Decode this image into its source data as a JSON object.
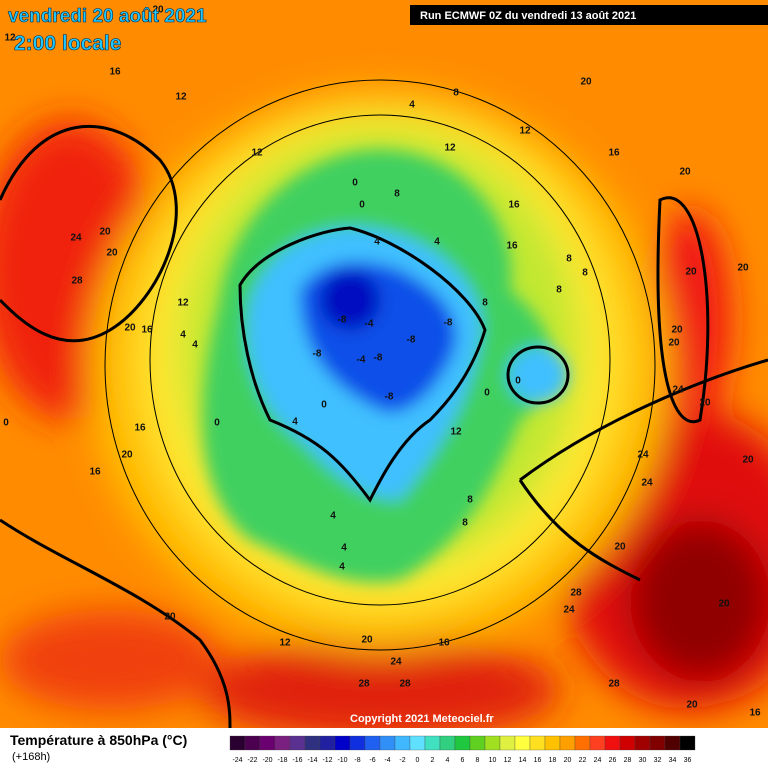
{
  "header": {
    "date": "vendredi 20 août 2021",
    "time": "2:00 locale",
    "run": "Run ECMWF 0Z du vendredi 13 août 2021"
  },
  "map": {
    "copyright": "Copyright 2021 Meteociel.fr",
    "labels": [
      16,
      12,
      4,
      8,
      12,
      16,
      20,
      20,
      12,
      12,
      0,
      8,
      0,
      16,
      16,
      4,
      4,
      24,
      20,
      20,
      28,
      8,
      8,
      8,
      8,
      20,
      20,
      12,
      20,
      16,
      4,
      4,
      -8,
      -4,
      -8,
      -8,
      -8,
      -4,
      -8,
      0,
      0,
      0,
      -8,
      20,
      20,
      24,
      20,
      0,
      4,
      12,
      16,
      20,
      16,
      24,
      20,
      24,
      8,
      4,
      8,
      4,
      4,
      20,
      28,
      24,
      20,
      20,
      12,
      20,
      16,
      24,
      28,
      28,
      28,
      20,
      16,
      0,
      20,
      12
    ]
  },
  "legend": {
    "title": "Température à 850hPa (°C)",
    "subtitle": "(+168h)",
    "ticks": [
      -24,
      -22,
      -20,
      -18,
      -16,
      -14,
      -12,
      -10,
      -8,
      -6,
      -4,
      -2,
      0,
      2,
      4,
      6,
      8,
      10,
      12,
      14,
      16,
      18,
      20,
      22,
      24,
      26,
      28,
      30,
      32,
      34,
      36
    ],
    "colors": [
      "#2a0030",
      "#4b0050",
      "#6a0070",
      "#7a2080",
      "#5a3090",
      "#303080",
      "#2020a0",
      "#0000c8",
      "#1030e0",
      "#2060f0",
      "#3090f8",
      "#40b8ff",
      "#60e0ff",
      "#40e0c0",
      "#30d080",
      "#20c840",
      "#60d020",
      "#a0e020",
      "#e0f040",
      "#ffff40",
      "#ffe020",
      "#ffc000",
      "#ffa000",
      "#ff7000",
      "#ff4020",
      "#f01010",
      "#d00000",
      "#a00000",
      "#800000",
      "#500000",
      "#000000"
    ]
  }
}
